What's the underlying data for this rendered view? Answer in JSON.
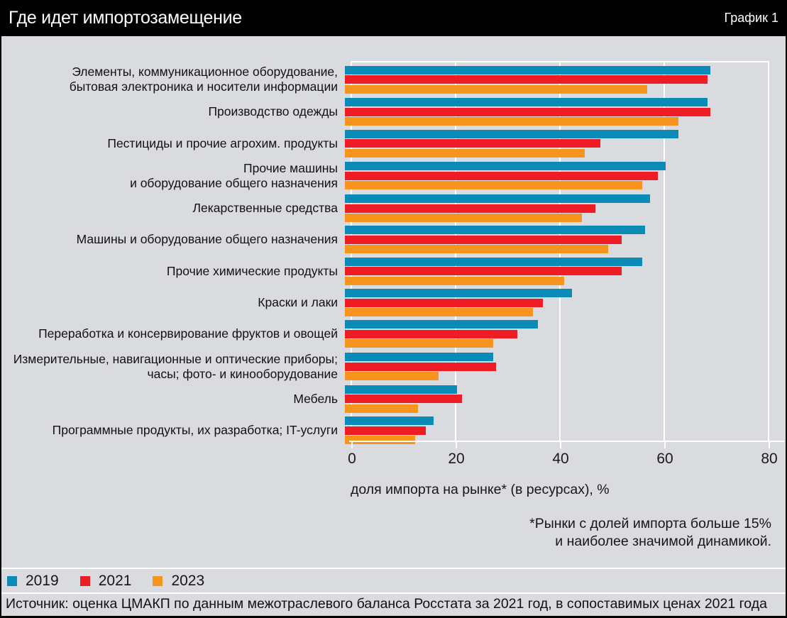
{
  "header": {
    "title": "Где идет импортозамещение",
    "corner_label": "График 1"
  },
  "chart_data": {
    "type": "bar",
    "orientation": "horizontal",
    "categories": [
      "Элементы, коммуникационное оборудование,\nбытовая электроника и носители информации",
      "Производство одежды",
      "Пестициды и прочие агрохим. продукты",
      "Прочие машины\nи оборудование общего назначения",
      "Лекарственные средства",
      "Машины и оборудование общего назначения",
      "Прочие химические продукты",
      "Краски и лаки",
      "Переработка и консервирование фруктов и овощей",
      "Измерительные, навигационные и оптические приборы;\nчасы; фото- и кинооборудование",
      "Мебель",
      "Программные продукты, их разработка; IT-услуги"
    ],
    "series": [
      {
        "name": "2019",
        "color": "#0a8ab6",
        "values": [
          70,
          69.5,
          64,
          61.5,
          58.5,
          57.5,
          57,
          43.5,
          37,
          28.5,
          21.5,
          17
        ]
      },
      {
        "name": "2021",
        "color": "#ee1c25",
        "values": [
          69.5,
          70,
          49,
          60,
          48,
          53,
          53,
          38,
          33,
          29,
          22.5,
          15.5
        ]
      },
      {
        "name": "2023",
        "color": "#f7941e",
        "values": [
          58,
          64,
          46,
          57,
          45.5,
          50.5,
          42,
          36,
          28.5,
          18,
          14,
          13.5
        ]
      }
    ],
    "xlabel": "доля импорта на рынке* (в ресурсах), %",
    "xlim": [
      0,
      80
    ],
    "xticks": [
      0,
      20,
      40,
      60,
      80
    ],
    "grid": "vertical-white",
    "legend_position": "bottom-left"
  },
  "footnote": "*Рынки с долей импорта больше 15%\nи наиболее значимой динамикой.",
  "source": "Источник: оценка ЦМАКП по данным межотраслевого баланса Росстата за 2021 год, в сопоставимых ценах 2021 года",
  "colors": {
    "background": "#dadbde",
    "header_background": "#000000",
    "header_text": "#ffffff",
    "gridline": "#ffffff",
    "text": "#161616"
  }
}
